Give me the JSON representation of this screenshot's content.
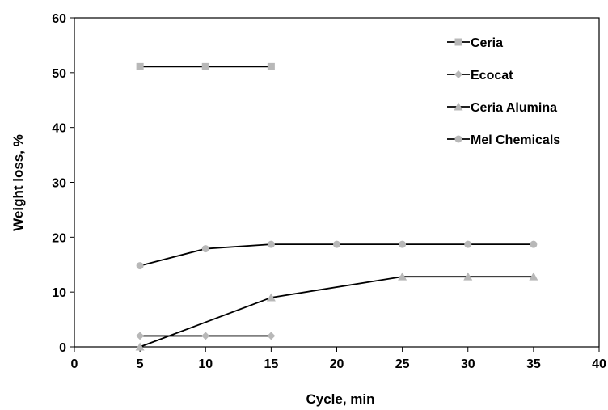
{
  "chart_data": {
    "type": "line",
    "title": "",
    "xlabel": "Cycle, min",
    "ylabel": "Weight loss, %",
    "xlim": [
      0,
      40
    ],
    "ylim": [
      0,
      60
    ],
    "xticks": [
      "0",
      "5",
      "10",
      "15",
      "20",
      "25",
      "30",
      "35",
      "40"
    ],
    "yticks": [
      "0",
      "10",
      "20",
      "30",
      "40",
      "50",
      "60"
    ],
    "grid": false,
    "legend_position": "top-right",
    "series": [
      {
        "name": "Ceria",
        "marker": "square",
        "x": [
          5,
          10,
          15
        ],
        "y": [
          51.1,
          51.1,
          51.1
        ]
      },
      {
        "name": "Ecocat",
        "marker": "diamond",
        "x": [
          5,
          10,
          15
        ],
        "y": [
          2.0,
          2.0,
          2.0
        ]
      },
      {
        "name": "Ceria Alumina",
        "marker": "triangle",
        "x": [
          5,
          15,
          25,
          30,
          35
        ],
        "y": [
          0.0,
          9.0,
          12.8,
          12.8,
          12.8
        ]
      },
      {
        "name": "Mel Chemicals",
        "marker": "circle",
        "x": [
          5,
          10,
          15,
          20,
          25,
          30,
          35
        ],
        "y": [
          14.8,
          17.9,
          18.7,
          18.7,
          18.7,
          18.7,
          18.7
        ]
      }
    ],
    "colors": {
      "line": "#000000",
      "marker": "#b8b8b8"
    }
  }
}
